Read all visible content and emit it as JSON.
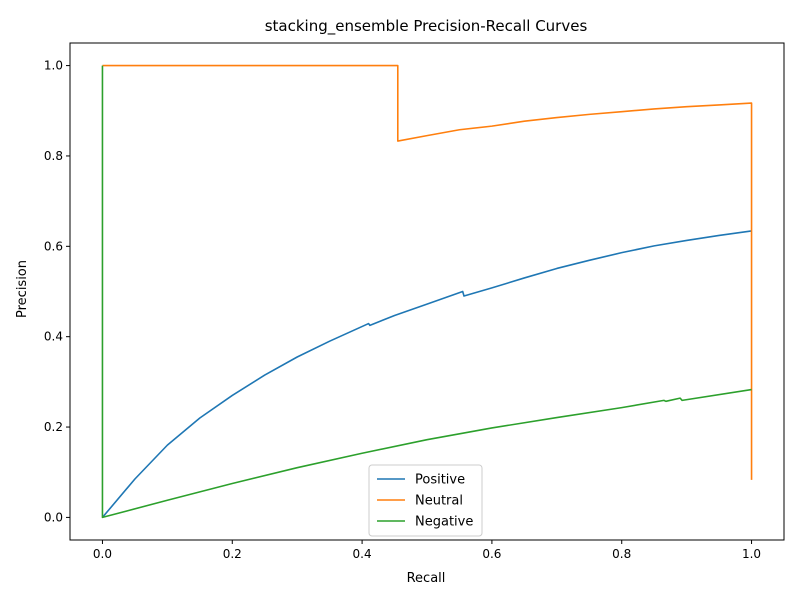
{
  "chart_data": {
    "type": "line",
    "title": "stacking_ensemble Precision-Recall Curves",
    "xlabel": "Recall",
    "ylabel": "Precision",
    "xlim": [
      -0.05,
      1.05
    ],
    "ylim": [
      -0.05,
      1.05
    ],
    "xticks": [
      0.0,
      0.2,
      0.4,
      0.6,
      0.8,
      1.0
    ],
    "yticks": [
      0.0,
      0.2,
      0.4,
      0.6,
      0.8,
      1.0
    ],
    "grid": false,
    "legend_position": "bottom-center",
    "series": [
      {
        "name": "Positive",
        "color": "#1f77b4",
        "points": [
          [
            0.0,
            0.0
          ],
          [
            0.05,
            0.085
          ],
          [
            0.1,
            0.16
          ],
          [
            0.15,
            0.22
          ],
          [
            0.2,
            0.27
          ],
          [
            0.25,
            0.315
          ],
          [
            0.3,
            0.355
          ],
          [
            0.35,
            0.39
          ],
          [
            0.41,
            0.429
          ],
          [
            0.412,
            0.425
          ],
          [
            0.45,
            0.447
          ],
          [
            0.5,
            0.472
          ],
          [
            0.555,
            0.5
          ],
          [
            0.557,
            0.49
          ],
          [
            0.6,
            0.508
          ],
          [
            0.65,
            0.53
          ],
          [
            0.7,
            0.551
          ],
          [
            0.75,
            0.569
          ],
          [
            0.8,
            0.586
          ],
          [
            0.85,
            0.601
          ],
          [
            0.9,
            0.613
          ],
          [
            0.95,
            0.624
          ],
          [
            1.0,
            0.634
          ]
        ]
      },
      {
        "name": "Neutral",
        "color": "#ff7f0e",
        "points": [
          [
            0.0,
            1.0
          ],
          [
            0.455,
            1.0
          ],
          [
            0.455,
            0.833
          ],
          [
            0.5,
            0.845
          ],
          [
            0.55,
            0.858
          ],
          [
            0.6,
            0.866
          ],
          [
            0.65,
            0.877
          ],
          [
            0.7,
            0.885
          ],
          [
            0.75,
            0.892
          ],
          [
            0.8,
            0.898
          ],
          [
            0.85,
            0.904
          ],
          [
            0.9,
            0.909
          ],
          [
            0.95,
            0.913
          ],
          [
            1.0,
            0.917
          ],
          [
            1.0,
            0.083
          ]
        ]
      },
      {
        "name": "Negative",
        "color": "#2ca02c",
        "points": [
          [
            0.0,
            1.0
          ],
          [
            0.0,
            0.0
          ],
          [
            0.1,
            0.038
          ],
          [
            0.2,
            0.075
          ],
          [
            0.3,
            0.11
          ],
          [
            0.4,
            0.142
          ],
          [
            0.5,
            0.172
          ],
          [
            0.6,
            0.198
          ],
          [
            0.7,
            0.221
          ],
          [
            0.8,
            0.243
          ],
          [
            0.865,
            0.259
          ],
          [
            0.868,
            0.257
          ],
          [
            0.89,
            0.264
          ],
          [
            0.893,
            0.259
          ],
          [
            1.0,
            0.283
          ]
        ]
      }
    ]
  }
}
